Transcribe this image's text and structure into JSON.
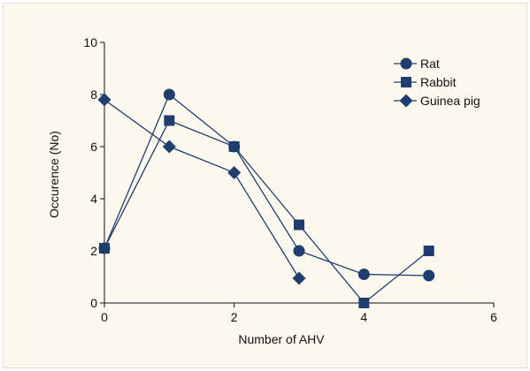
{
  "chart_data": {
    "type": "line",
    "xlabel": "Number of AHV",
    "ylabel": "Occurence (No)",
    "xlim": [
      0,
      6
    ],
    "ylim": [
      0,
      10
    ],
    "x_ticks": [
      "0",
      "2",
      "4",
      "6"
    ],
    "y_ticks": [
      "0",
      "2",
      "4",
      "6",
      "8",
      "10"
    ],
    "grid": false,
    "legend_position": "top-right",
    "color": "#1f3d6e",
    "series": [
      {
        "name": "Rat",
        "marker": "circle",
        "points": [
          [
            0,
            2.1
          ],
          [
            1,
            8
          ],
          [
            2,
            6
          ],
          [
            3,
            2
          ],
          [
            4,
            1.1
          ],
          [
            5,
            1.05
          ]
        ]
      },
      {
        "name": "Rabbit",
        "marker": "square",
        "points": [
          [
            0,
            2.1
          ],
          [
            1,
            7
          ],
          [
            2,
            6
          ],
          [
            3,
            3
          ],
          [
            4,
            0
          ],
          [
            5,
            2
          ]
        ]
      },
      {
        "name": "Guinea pig",
        "marker": "diamond",
        "points": [
          [
            0,
            7.8
          ],
          [
            1,
            6
          ],
          [
            2,
            5
          ],
          [
            3,
            0.95
          ]
        ]
      }
    ]
  }
}
